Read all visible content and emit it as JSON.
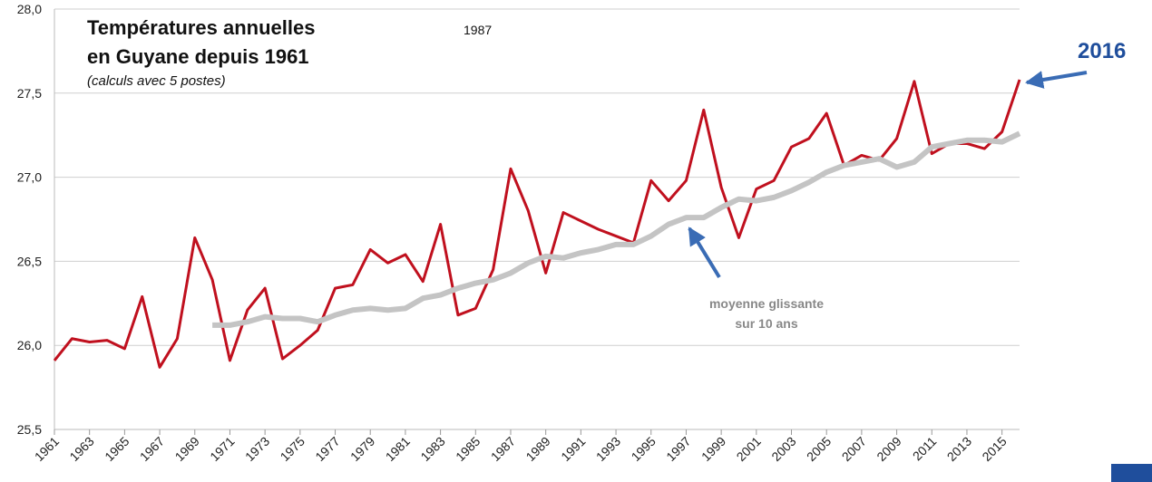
{
  "chart_data": {
    "type": "line",
    "title": [
      "Températures annuelles",
      "en Guyane depuis 1961"
    ],
    "subtitle": "(calculs avec 5 postes)",
    "annotations": {
      "floating": "1987",
      "last_year": "2016",
      "average": [
        "moyenne glissante",
        "sur 10 ans"
      ]
    },
    "x": [
      1961,
      1962,
      1963,
      1964,
      1965,
      1966,
      1967,
      1968,
      1969,
      1970,
      1971,
      1972,
      1973,
      1974,
      1975,
      1976,
      1977,
      1978,
      1979,
      1980,
      1981,
      1982,
      1983,
      1984,
      1985,
      1986,
      1987,
      1988,
      1989,
      1990,
      1991,
      1992,
      1993,
      1994,
      1995,
      1996,
      1997,
      1998,
      1999,
      2000,
      2001,
      2002,
      2003,
      2004,
      2005,
      2006,
      2007,
      2008,
      2009,
      2010,
      2011,
      2012,
      2013,
      2014,
      2015,
      2016
    ],
    "series": [
      {
        "color": "#c0101e",
        "width": 3,
        "values": [
          25.91,
          26.04,
          26.02,
          26.03,
          25.98,
          26.29,
          25.87,
          26.04,
          26.64,
          26.39,
          25.91,
          26.21,
          26.34,
          25.92,
          26.0,
          26.09,
          26.34,
          26.36,
          26.57,
          26.49,
          26.54,
          26.38,
          26.72,
          26.18,
          26.22,
          26.45,
          27.05,
          26.8,
          26.43,
          26.79,
          26.74,
          26.69,
          26.65,
          26.61,
          26.98,
          26.86,
          26.98,
          27.4,
          26.94,
          26.64,
          26.93,
          26.98,
          27.18,
          27.23,
          27.38,
          27.07,
          27.13,
          27.1,
          27.23,
          27.57,
          27.14,
          27.2,
          27.2,
          27.17,
          27.27,
          27.58
        ]
      },
      {
        "color": "#c4c4c4",
        "width": 6,
        "values": [
          null,
          null,
          null,
          null,
          null,
          null,
          null,
          null,
          null,
          26.12,
          26.12,
          26.14,
          26.17,
          26.16,
          26.16,
          26.14,
          26.18,
          26.21,
          26.22,
          26.21,
          26.22,
          26.28,
          26.3,
          26.34,
          26.37,
          26.39,
          26.43,
          26.49,
          26.53,
          26.52,
          26.55,
          26.57,
          26.6,
          26.6,
          26.65,
          26.72,
          26.76,
          26.76,
          26.82,
          26.87,
          26.86,
          26.88,
          26.92,
          26.97,
          27.03,
          27.07,
          27.09,
          27.11,
          27.06,
          27.09,
          27.18,
          27.2,
          27.22,
          27.22,
          27.21,
          27.26
        ]
      }
    ],
    "xlim": [
      1961,
      2016
    ],
    "xticks": [
      1961,
      1963,
      1965,
      1967,
      1969,
      1971,
      1973,
      1975,
      1977,
      1979,
      1981,
      1983,
      1985,
      1987,
      1989,
      1991,
      1993,
      1995,
      1997,
      1999,
      2001,
      2003,
      2005,
      2007,
      2009,
      2011,
      2013,
      2015
    ],
    "ylim": [
      25.5,
      28
    ],
    "yticks": [
      {
        "value": 25.5,
        "label": "25,5"
      },
      {
        "value": 26,
        "label": "26,0"
      },
      {
        "value": 26.5,
        "label": "26,5"
      },
      {
        "value": 27,
        "label": "27,0"
      },
      {
        "value": 27.5,
        "label": "27,5"
      },
      {
        "value": 28,
        "label": "28,0"
      }
    ],
    "grid": true
  }
}
